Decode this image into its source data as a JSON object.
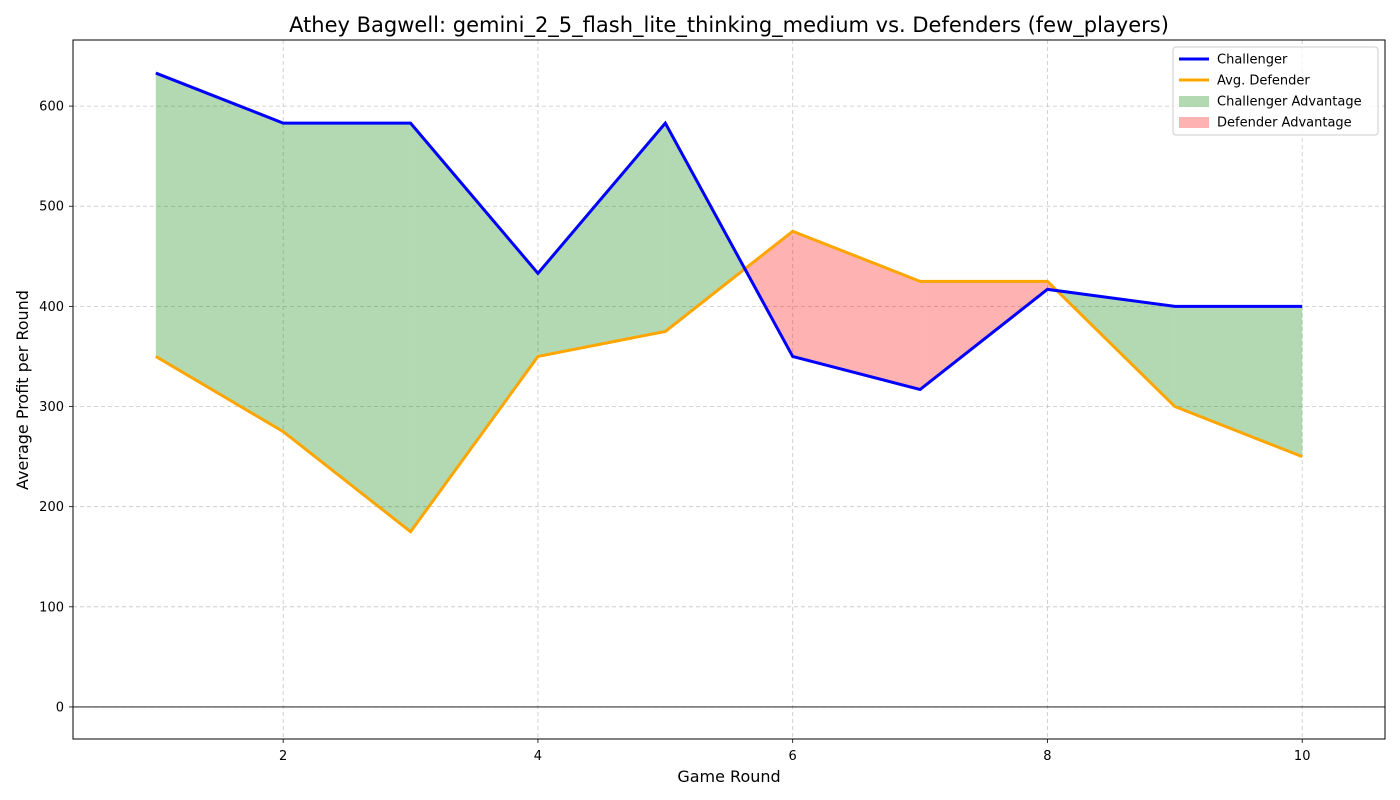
{
  "chart_data": {
    "type": "line",
    "title": "Athey Bagwell: gemini_2_5_flash_lite_thinking_medium vs. Defenders (few_players)",
    "xlabel": "Game Round",
    "ylabel": "Average Profit per Round",
    "x": [
      1,
      2,
      3,
      4,
      5,
      6,
      7,
      8,
      9,
      10
    ],
    "xlim": [
      0.35,
      10.65
    ],
    "ylim": [
      -32,
      666
    ],
    "xticks": [
      2,
      4,
      6,
      8,
      10
    ],
    "yticks": [
      0,
      100,
      200,
      300,
      400,
      500,
      600
    ],
    "grid": true,
    "legend_position": "top-right",
    "series": [
      {
        "name": "Challenger",
        "color": "#0000ff",
        "values": [
          633,
          583,
          583,
          433,
          583,
          350,
          317,
          417,
          400,
          400
        ]
      },
      {
        "name": "Avg. Defender",
        "color": "#ffa500",
        "values": [
          350,
          275,
          175,
          350,
          375,
          475,
          425,
          425,
          300,
          250
        ]
      }
    ],
    "fills": [
      {
        "name": "Challenger Advantage",
        "color": "#008000",
        "opacity": 0.3
      },
      {
        "name": "Defender Advantage",
        "color": "#ff0000",
        "opacity": 0.3
      }
    ]
  }
}
